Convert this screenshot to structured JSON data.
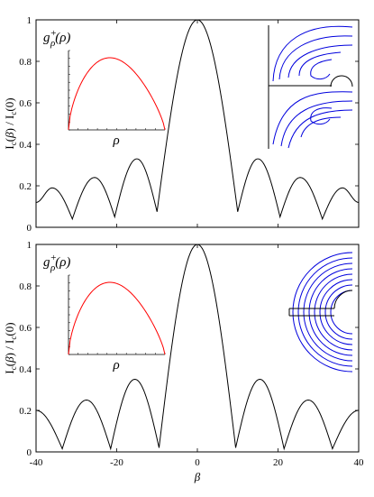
{
  "chart_data": [
    {
      "type": "line",
      "panel": "top",
      "xlim": [
        -40,
        40
      ],
      "ylim": [
        0,
        1
      ],
      "yticks": [
        "0",
        "0.2",
        "0.4",
        "0.6",
        "0.8",
        "1"
      ],
      "ylabel": "I_c(β) / I_c(0)",
      "main_peak": {
        "x": 0,
        "y": 1.0
      },
      "minima": [
        {
          "x": -31,
          "y": 0.04
        },
        {
          "x": -20.5,
          "y": 0.05
        },
        {
          "x": -10,
          "y": 0.075
        },
        {
          "x": 10,
          "y": 0.075
        },
        {
          "x": 20.5,
          "y": 0.05
        },
        {
          "x": 31,
          "y": 0.04
        }
      ],
      "side_peaks": [
        {
          "x": -36,
          "y": 0.19
        },
        {
          "x": -25.5,
          "y": 0.24
        },
        {
          "x": -15,
          "y": 0.33
        },
        {
          "x": 15,
          "y": 0.33
        },
        {
          "x": 25.5,
          "y": 0.24
        },
        {
          "x": 36,
          "y": 0.19
        }
      ],
      "edge_values": {
        "x_min": 0.12,
        "x_max": 0.12
      },
      "line_color": "#000000",
      "inset_profile": {
        "label": "g^+_ρ(ρ)",
        "xlabel": "ρ",
        "color": "#ff0000"
      },
      "inset_field_lines_color": "#0000dd"
    },
    {
      "type": "line",
      "panel": "bottom",
      "xlim": [
        -40,
        40
      ],
      "ylim": [
        0,
        1
      ],
      "xticks": [
        "-40",
        "-20",
        "0",
        "20",
        "40"
      ],
      "yticks": [
        "0",
        "0.2",
        "0.4",
        "0.6",
        "0.8",
        "1"
      ],
      "xlabel": "β",
      "ylabel": "I_c(β) / I_c(0)",
      "main_peak": {
        "x": 0,
        "y": 1.0
      },
      "minima": [
        {
          "x": -33.5,
          "y": 0.015
        },
        {
          "x": -21.5,
          "y": 0.015
        },
        {
          "x": -9.5,
          "y": 0.02
        },
        {
          "x": 9.5,
          "y": 0.02
        },
        {
          "x": 21.5,
          "y": 0.015
        },
        {
          "x": 33.5,
          "y": 0.015
        }
      ],
      "side_peaks": [
        {
          "x": -27.5,
          "y": 0.25
        },
        {
          "x": -15.5,
          "y": 0.35
        },
        {
          "x": 15.5,
          "y": 0.35
        },
        {
          "x": 27.5,
          "y": 0.25
        }
      ],
      "edge_values": {
        "x_min": 0.2,
        "x_max": 0.2
      },
      "line_color": "#000000",
      "inset_profile": {
        "label": "g^+_ρ(ρ)",
        "xlabel": "ρ",
        "color": "#ff0000"
      },
      "inset_field_lines_color": "#0000dd"
    }
  ]
}
